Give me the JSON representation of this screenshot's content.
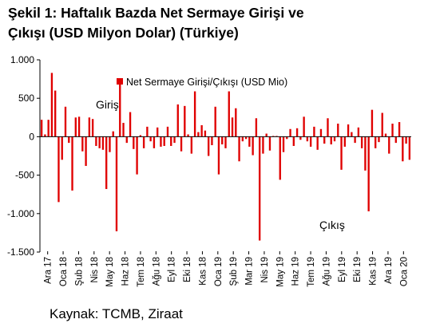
{
  "title_line1": "Şekil 1: Haftalık Bazda Net Sermaye Girişi ve",
  "title_line2": "Çıkışı (USD Milyon Dolar) (Türkiye)",
  "source": "Kaynak: TCMB, Ziraat",
  "colors": {
    "bar": "#e00000",
    "axis": "#000000"
  },
  "chart_data": {
    "type": "bar",
    "title": "",
    "xlabel": "",
    "ylabel": "",
    "ylim": [
      -1500,
      1000
    ],
    "yticks": [
      1000,
      500,
      0,
      -500,
      -1000,
      -1500
    ],
    "ytick_labels": [
      "1.000",
      "500",
      "0",
      "-500",
      "-1.000",
      "-1.500"
    ],
    "xtick_labels": [
      "Ara 17",
      "Oca 18",
      "Şub 18",
      "Nis 18",
      "May 18",
      "Haz 18",
      "Tem 18",
      "Ağu 18",
      "Eyl 18",
      "Eki 18",
      "Kas 18",
      "Oca 19",
      "Şub 19",
      "Mar 19",
      "Nis 19",
      "May 19",
      "Haz 19",
      "Tem 19",
      "Ağu 19",
      "Eyl 19",
      "Eki 19",
      "Kas 19",
      "Ara 19",
      "Oca 20"
    ],
    "legend": {
      "label": "Net Sermaye Girişi/Çıkışı (USD Mio)",
      "position": "top-center"
    },
    "annotations": [
      "Giriş",
      "Çıkış"
    ],
    "series": [
      {
        "name": "Net Sermaye Girişi/Çıkışı (USD Mio)",
        "values": [
          220,
          30,
          220,
          830,
          600,
          -850,
          -300,
          390,
          -80,
          -700,
          250,
          260,
          -190,
          -380,
          250,
          230,
          -120,
          -150,
          -170,
          -680,
          -200,
          70,
          -1230,
          680,
          180,
          -80,
          320,
          -160,
          -490,
          20,
          -150,
          130,
          -60,
          -150,
          120,
          -130,
          -120,
          130,
          -120,
          -80,
          420,
          -190,
          400,
          30,
          -220,
          590,
          60,
          150,
          80,
          -250,
          -110,
          390,
          -490,
          -100,
          -150,
          590,
          250,
          370,
          -320,
          -60,
          -30,
          -130,
          -240,
          240,
          -1350,
          -220,
          40,
          -180,
          10,
          10,
          -560,
          -200,
          -30,
          100,
          -120,
          110,
          -40,
          260,
          -60,
          -130,
          130,
          -170,
          100,
          -90,
          240,
          -100,
          -60,
          170,
          -430,
          -130,
          160,
          60,
          -80,
          120,
          -150,
          -440,
          -970,
          350,
          -150,
          -70,
          310,
          40,
          -220,
          170,
          -80,
          190,
          -320,
          -90,
          -300
        ]
      }
    ]
  }
}
